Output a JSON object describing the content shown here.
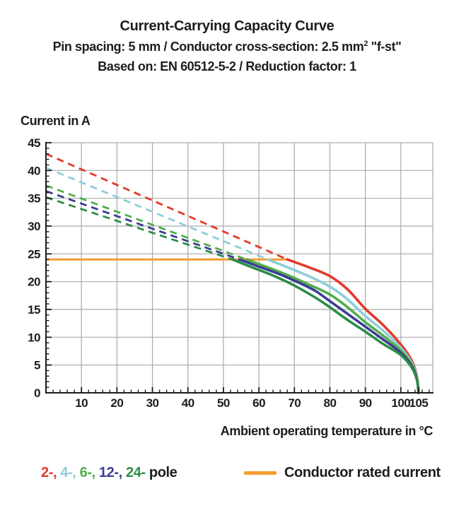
{
  "header": {
    "title": "Current-Carrying Capacity Curve",
    "subtitle1_pre": "Pin spacing: 5 mm / Conductor cross-section: 2.5 mm",
    "subtitle1_sup": "2",
    "subtitle1_post": " \"f-st\"",
    "subtitle2": "Based on: EN 60512-5-2 / Reduction factor: 1"
  },
  "chart_data": {
    "type": "line",
    "title": "Current-Carrying Capacity Curve",
    "xlabel": "Ambient operating temperature in °C",
    "ylabel": "Current in A",
    "x_axis": {
      "title": "Ambient operating temperature in °C",
      "min": 0,
      "max": 109,
      "major_ticks": [
        10,
        20,
        30,
        40,
        50,
        60,
        70,
        80,
        90,
        100,
        105
      ],
      "minor_step": 2,
      "grid_step": 10
    },
    "y_axis": {
      "title": "Current in A",
      "min": 0,
      "max": 45,
      "labels": [
        0,
        5,
        10,
        15,
        20,
        25,
        30,
        35,
        40,
        45
      ],
      "major_step": 5,
      "minor_step": 1
    },
    "grid": true,
    "grid_color": "#a9a9a9",
    "axis_color": "#1d1d1b",
    "rated_current": {
      "label": "Conductor rated current",
      "value": 24,
      "span": [
        0,
        68
      ],
      "color": "#f59c30"
    },
    "series": [
      {
        "name": "2-pole",
        "color": "#e3392b",
        "dashed_points": [
          [
            0,
            43
          ],
          [
            68,
            24
          ]
        ],
        "solid_points": [
          [
            68,
            24
          ],
          [
            74,
            22.6
          ],
          [
            80,
            21
          ],
          [
            85,
            18.6
          ],
          [
            90,
            15.1
          ],
          [
            95,
            12.2
          ],
          [
            100,
            8.7
          ],
          [
            103,
            5.9
          ],
          [
            104.5,
            3
          ],
          [
            105,
            0
          ]
        ]
      },
      {
        "name": "4-pole",
        "color": "#8fcdd9",
        "dashed_points": [
          [
            0,
            40.5
          ],
          [
            62.5,
            24
          ]
        ],
        "solid_points": [
          [
            62.5,
            24
          ],
          [
            68,
            22.6
          ],
          [
            74,
            21
          ],
          [
            80,
            19.1
          ],
          [
            85,
            16.8
          ],
          [
            90,
            13.8
          ],
          [
            95,
            11.2
          ],
          [
            100,
            8.1
          ],
          [
            103,
            5.5
          ],
          [
            104.5,
            2.8
          ],
          [
            105,
            0
          ]
        ]
      },
      {
        "name": "6-pole",
        "color": "#52ae4a",
        "dashed_points": [
          [
            0,
            37.3
          ],
          [
            56.5,
            24
          ]
        ],
        "solid_points": [
          [
            56.5,
            24
          ],
          [
            62,
            22.7
          ],
          [
            68,
            21.2
          ],
          [
            74,
            19.5
          ],
          [
            80,
            17.7
          ],
          [
            85,
            15.4
          ],
          [
            90,
            12.7
          ],
          [
            95,
            10.3
          ],
          [
            100,
            7.6
          ],
          [
            103,
            5.2
          ],
          [
            104.5,
            2.6
          ],
          [
            105,
            0
          ]
        ]
      },
      {
        "name": "12-pole",
        "color": "#3b3d94",
        "dashed_points": [
          [
            0,
            36.3
          ],
          [
            54.5,
            24
          ]
        ],
        "solid_points": [
          [
            54.5,
            24
          ],
          [
            60,
            22.7
          ],
          [
            66,
            21.3
          ],
          [
            72,
            19.6
          ],
          [
            76,
            18.3
          ],
          [
            80,
            16.5
          ],
          [
            85,
            14.2
          ],
          [
            90,
            11.9
          ],
          [
            95,
            9.6
          ],
          [
            100,
            7.2
          ],
          [
            103,
            4.9
          ],
          [
            104.5,
            2.5
          ],
          [
            105,
            0
          ]
        ]
      },
      {
        "name": "24-pole",
        "color": "#2d8c47",
        "dashed_points": [
          [
            0,
            35.2
          ],
          [
            52.5,
            24
          ]
        ],
        "solid_points": [
          [
            52.5,
            24
          ],
          [
            58,
            22.6
          ],
          [
            64,
            21.1
          ],
          [
            70,
            19.3
          ],
          [
            76,
            17.1
          ],
          [
            80,
            15.4
          ],
          [
            85,
            13.1
          ],
          [
            90,
            11
          ],
          [
            95,
            8.8
          ],
          [
            100,
            6.8
          ],
          [
            103,
            4.6
          ],
          [
            104.5,
            2.4
          ],
          [
            105,
            0
          ]
        ]
      }
    ]
  },
  "legend": {
    "pole_items": [
      {
        "label": "2-,",
        "color": "#e3392b"
      },
      {
        "label": "4-,",
        "color": "#8fcdd9"
      },
      {
        "label": "6-,",
        "color": "#52ae4a"
      },
      {
        "label": "12-,",
        "color": "#3b3d94"
      },
      {
        "label": "24-",
        "color": "#2d8c47"
      }
    ],
    "pole_suffix": "pole",
    "rated_label": "Conductor rated current"
  }
}
